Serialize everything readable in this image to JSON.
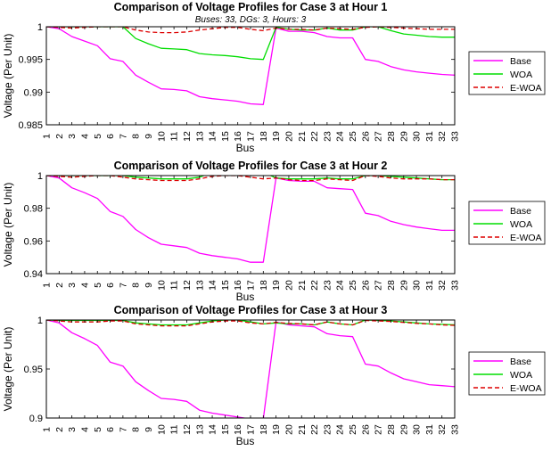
{
  "figure": {
    "x_categories": [
      "1",
      "2",
      "3",
      "4",
      "5",
      "6",
      "7",
      "8",
      "9",
      "10",
      "11",
      "12",
      "13",
      "14",
      "15",
      "16",
      "17",
      "18",
      "19",
      "20",
      "21",
      "22",
      "23",
      "24",
      "25",
      "26",
      "27",
      "28",
      "29",
      "30",
      "31",
      "32",
      "33"
    ]
  },
  "chart_data": [
    {
      "type": "line",
      "title": "Comparison of Voltage Profiles for Case 3 at Hour 1",
      "subtitle": "Buses: 33, DGs: 3, Hours: 3",
      "xlabel": "Bus",
      "ylabel": "Voltage (Per Unit)",
      "x": [
        1,
        2,
        3,
        4,
        5,
        6,
        7,
        8,
        9,
        10,
        11,
        12,
        13,
        14,
        15,
        16,
        17,
        18,
        19,
        20,
        21,
        22,
        23,
        24,
        25,
        26,
        27,
        28,
        29,
        30,
        31,
        32,
        33
      ],
      "ylim": [
        0.985,
        1.0
      ],
      "yticks": [
        "0.985",
        "0.99",
        "0.995",
        "1"
      ],
      "ytick_values": [
        0.985,
        0.99,
        0.995,
        1.0
      ],
      "legend_position": "right",
      "series": [
        {
          "name": "Base",
          "color": "#ff00ff",
          "dash": "solid",
          "values": [
            1.0,
            0.9997,
            0.9985,
            0.9978,
            0.9971,
            0.9951,
            0.9947,
            0.9926,
            0.9915,
            0.9905,
            0.9904,
            0.9902,
            0.9893,
            0.989,
            0.9888,
            0.9886,
            0.9882,
            0.9881,
            0.9998,
            0.9993,
            0.9993,
            0.9991,
            0.9985,
            0.9983,
            0.9983,
            0.995,
            0.9947,
            0.9939,
            0.9934,
            0.9931,
            0.9929,
            0.9927,
            0.9926
          ]
        },
        {
          "name": "WOA",
          "color": "#00dd00",
          "dash": "solid",
          "values": [
            1.0,
            1.0,
            1.0,
            1.0,
            1.0,
            1.0,
            1.0,
            0.9982,
            0.9974,
            0.9967,
            0.9966,
            0.9965,
            0.9959,
            0.9957,
            0.9956,
            0.9954,
            0.9951,
            0.995,
            0.9999,
            0.9996,
            0.9995,
            0.9995,
            0.9998,
            0.9995,
            0.9995,
            1.0,
            1.0,
            0.9994,
            0.9989,
            0.9987,
            0.9985,
            0.9984,
            0.9984
          ]
        },
        {
          "name": "E-WOA",
          "color": "#dd0000",
          "dash": "dashed",
          "values": [
            1.0,
            0.9999,
            0.9998,
            0.9999,
            1.0,
            1.0,
            1.0,
            0.9995,
            0.9992,
            0.9991,
            0.9991,
            0.9992,
            0.9995,
            0.9997,
            0.9999,
            0.9999,
            0.9996,
            0.9994,
            0.9998,
            0.9996,
            0.9996,
            0.9995,
            0.9998,
            0.9997,
            0.9996,
            0.9999,
            1.0,
            0.9999,
            0.9998,
            0.9997,
            0.9996,
            0.9996,
            0.9996
          ]
        }
      ]
    },
    {
      "type": "line",
      "title": "Comparison of Voltage Profiles for Case 3 at Hour 2",
      "xlabel": "Bus",
      "ylabel": "Voltage (Per Unit)",
      "x": [
        1,
        2,
        3,
        4,
        5,
        6,
        7,
        8,
        9,
        10,
        11,
        12,
        13,
        14,
        15,
        16,
        17,
        18,
        19,
        20,
        21,
        22,
        23,
        24,
        25,
        26,
        27,
        28,
        29,
        30,
        31,
        32,
        33
      ],
      "ylim": [
        0.94,
        1.0
      ],
      "yticks": [
        "0.94",
        "0.96",
        "0.98",
        "1"
      ],
      "ytick_values": [
        0.94,
        0.96,
        0.98,
        1.0
      ],
      "legend_position": "right",
      "series": [
        {
          "name": "Base",
          "color": "#ff00ff",
          "dash": "solid",
          "values": [
            1.0,
            0.9985,
            0.9925,
            0.9895,
            0.986,
            0.978,
            0.975,
            0.967,
            0.962,
            0.958,
            0.957,
            0.956,
            0.9525,
            0.951,
            0.95,
            0.949,
            0.947,
            0.947,
            0.9985,
            0.997,
            0.9965,
            0.9965,
            0.9925,
            0.992,
            0.9915,
            0.977,
            0.9755,
            0.972,
            0.97,
            0.9685,
            0.9675,
            0.9665,
            0.9665
          ]
        },
        {
          "name": "WOA",
          "color": "#00dd00",
          "dash": "solid",
          "values": [
            1.0,
            1.0,
            1.0,
            1.0,
            1.0,
            1.0,
            1.0,
            0.999,
            0.9985,
            0.998,
            0.998,
            0.998,
            0.999,
            1.002,
            1.002,
            1.002,
            1.002,
            1.002,
            0.9985,
            0.998,
            0.998,
            0.998,
            0.9985,
            0.998,
            0.998,
            1.0,
            1.0,
            0.9995,
            0.999,
            0.9985,
            0.998,
            0.9975,
            0.9975
          ]
        },
        {
          "name": "E-WOA",
          "color": "#dd0000",
          "dash": "dashed",
          "values": [
            1.0,
            0.9995,
            0.999,
            0.9995,
            1.0,
            1.0,
            0.999,
            0.998,
            0.9975,
            0.997,
            0.997,
            0.997,
            0.998,
            0.9995,
            1.0,
            1.0,
            0.999,
            0.998,
            0.9985,
            0.9975,
            0.997,
            0.997,
            0.998,
            0.9975,
            0.997,
            1.0,
            0.9995,
            0.9985,
            0.998,
            0.998,
            0.998,
            0.9975,
            0.9975
          ]
        }
      ]
    },
    {
      "type": "line",
      "title": "Comparison of Voltage Profiles for Case 3 at Hour 3",
      "xlabel": "Bus",
      "ylabel": "Voltage (Per Unit)",
      "x": [
        1,
        2,
        3,
        4,
        5,
        6,
        7,
        8,
        9,
        10,
        11,
        12,
        13,
        14,
        15,
        16,
        17,
        18,
        19,
        20,
        21,
        22,
        23,
        24,
        25,
        26,
        27,
        28,
        29,
        30,
        31,
        32,
        33
      ],
      "ylim": [
        0.9,
        1.0
      ],
      "yticks": [
        "0.9",
        "0.95",
        "1"
      ],
      "ytick_values": [
        0.9,
        0.95,
        1.0
      ],
      "legend_position": "right",
      "series": [
        {
          "name": "Base",
          "color": "#ff00ff",
          "dash": "solid",
          "values": [
            1.0,
            0.997,
            0.987,
            0.981,
            0.974,
            0.957,
            0.953,
            0.937,
            0.928,
            0.92,
            0.919,
            0.917,
            0.908,
            0.905,
            0.903,
            0.901,
            0.899,
            0.899,
            0.998,
            0.995,
            0.994,
            0.993,
            0.986,
            0.984,
            0.983,
            0.955,
            0.953,
            0.946,
            0.94,
            0.937,
            0.934,
            0.933,
            0.932
          ]
        },
        {
          "name": "WOA",
          "color": "#00dd00",
          "dash": "solid",
          "values": [
            1.0,
            0.9995,
            0.9995,
            0.9995,
            0.9995,
            0.9995,
            0.9995,
            0.997,
            0.996,
            0.995,
            0.995,
            0.995,
            0.997,
            0.999,
            1.0,
            1.0,
            0.998,
            0.996,
            0.997,
            0.996,
            0.996,
            0.995,
            0.998,
            0.996,
            0.995,
            1.0,
            0.9995,
            0.999,
            0.998,
            0.997,
            0.996,
            0.9955,
            0.995
          ]
        },
        {
          "name": "E-WOA",
          "color": "#dd0000",
          "dash": "dashed",
          "values": [
            1.0,
            0.999,
            0.998,
            0.998,
            0.998,
            0.999,
            0.999,
            0.996,
            0.995,
            0.994,
            0.994,
            0.994,
            0.996,
            0.998,
            0.999,
            0.999,
            0.997,
            0.996,
            0.9975,
            0.9965,
            0.996,
            0.995,
            0.998,
            0.996,
            0.995,
            0.9995,
            0.999,
            0.9985,
            0.9975,
            0.9965,
            0.996,
            0.995,
            0.9945
          ]
        }
      ]
    }
  ]
}
